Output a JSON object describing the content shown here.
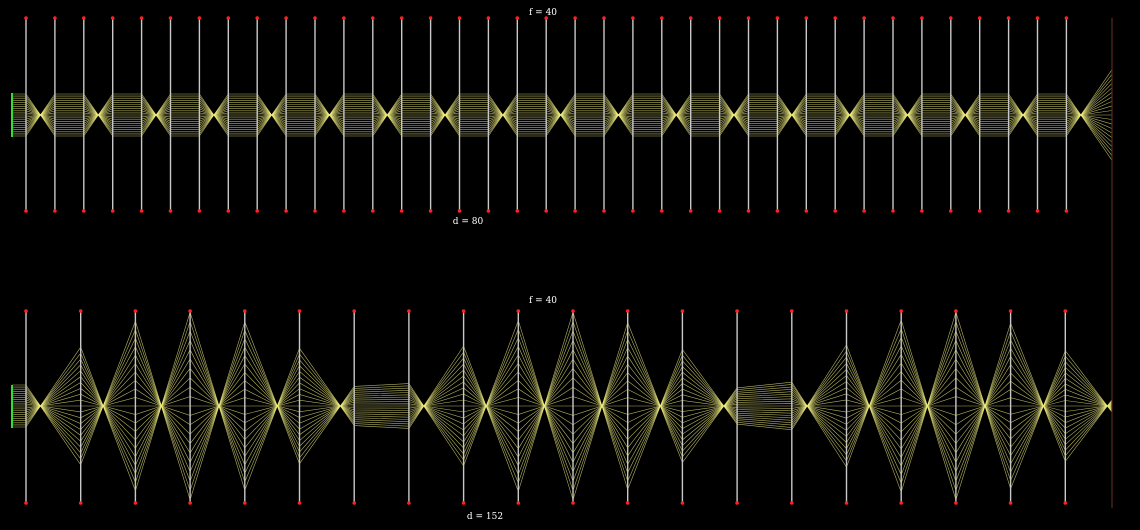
{
  "panels": [
    {
      "id": "top",
      "f_label": "f = 40",
      "d_label": "d = 80",
      "focal_length": 40,
      "lens_spacing": 80
    },
    {
      "id": "bottom",
      "f_label": "f = 40",
      "d_label": "d = 152",
      "focal_length": 40,
      "lens_spacing": 152
    }
  ],
  "colors": {
    "background": "#000000",
    "lens": "#c8c8c8",
    "lens_end": "#ff2020",
    "ray": "#f0ee80",
    "source": "#33dd33",
    "screen": "#5a2a1a"
  }
}
